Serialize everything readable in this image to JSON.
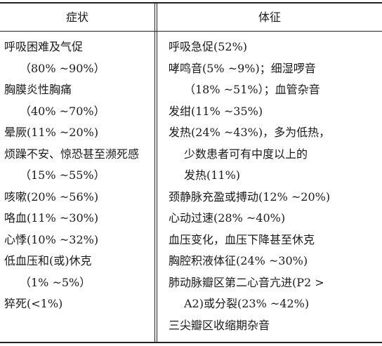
{
  "header": {
    "left": "症状",
    "right": "体征"
  },
  "left_lines": [
    {
      "text": "呼吸困难及气促",
      "indent": false
    },
    {
      "text": "（80% ~90%）",
      "indent": true
    },
    {
      "text": "胸膜炎性胸痛",
      "indent": false
    },
    {
      "text": "（40% ~70%）",
      "indent": true
    },
    {
      "text": "晕厥(11% ~20%)",
      "indent": false
    },
    {
      "text": "烦躁不安、惊恐甚至濒死感",
      "indent": false
    },
    {
      "text": "（15% ~55%）",
      "indent": true
    },
    {
      "text": "咳嗽(20% ~56%)",
      "indent": false
    },
    {
      "text": "咯血(11% ~30%)",
      "indent": false
    },
    {
      "text": "心悸(10% ~32%)",
      "indent": false
    },
    {
      "text": "低血压和(或)休克",
      "indent": false
    },
    {
      "text": "（1% ~5%）",
      "indent": true
    },
    {
      "text": "猝死(<1%)",
      "indent": false
    }
  ],
  "right_lines": [
    {
      "text": "呼吸急促(52%)",
      "indent": false
    },
    {
      "text": "哮鸣音(5% ~9%)；细湿啰音",
      "indent": false
    },
    {
      "text": "（18% ~51%）；血管杂音",
      "indent": true
    },
    {
      "text": "发绀(11% ~35%)",
      "indent": false
    },
    {
      "text": "发热(24% ~43%)，多为低热，",
      "indent": false
    },
    {
      "text": "少数患者可有中度以上的",
      "indent": true
    },
    {
      "text": "发热(11%)",
      "indent": true
    },
    {
      "text": "颈静脉充盈或搏动(12% ~20%)",
      "indent": false
    },
    {
      "text": "心动过速(28% ~40%)",
      "indent": false
    },
    {
      "text": "血压变化，血压下降甚至休克",
      "indent": false
    },
    {
      "text": "胸腔积液体征(24% ~30%)",
      "indent": false
    },
    {
      "text": "肺动脉瓣区第二心音亢进(P2 >",
      "indent": false
    },
    {
      "text": "A2)或分裂(23% ~42%)",
      "indent": true
    },
    {
      "text": "三尖瓣区收缩期杂音",
      "indent": false
    }
  ]
}
